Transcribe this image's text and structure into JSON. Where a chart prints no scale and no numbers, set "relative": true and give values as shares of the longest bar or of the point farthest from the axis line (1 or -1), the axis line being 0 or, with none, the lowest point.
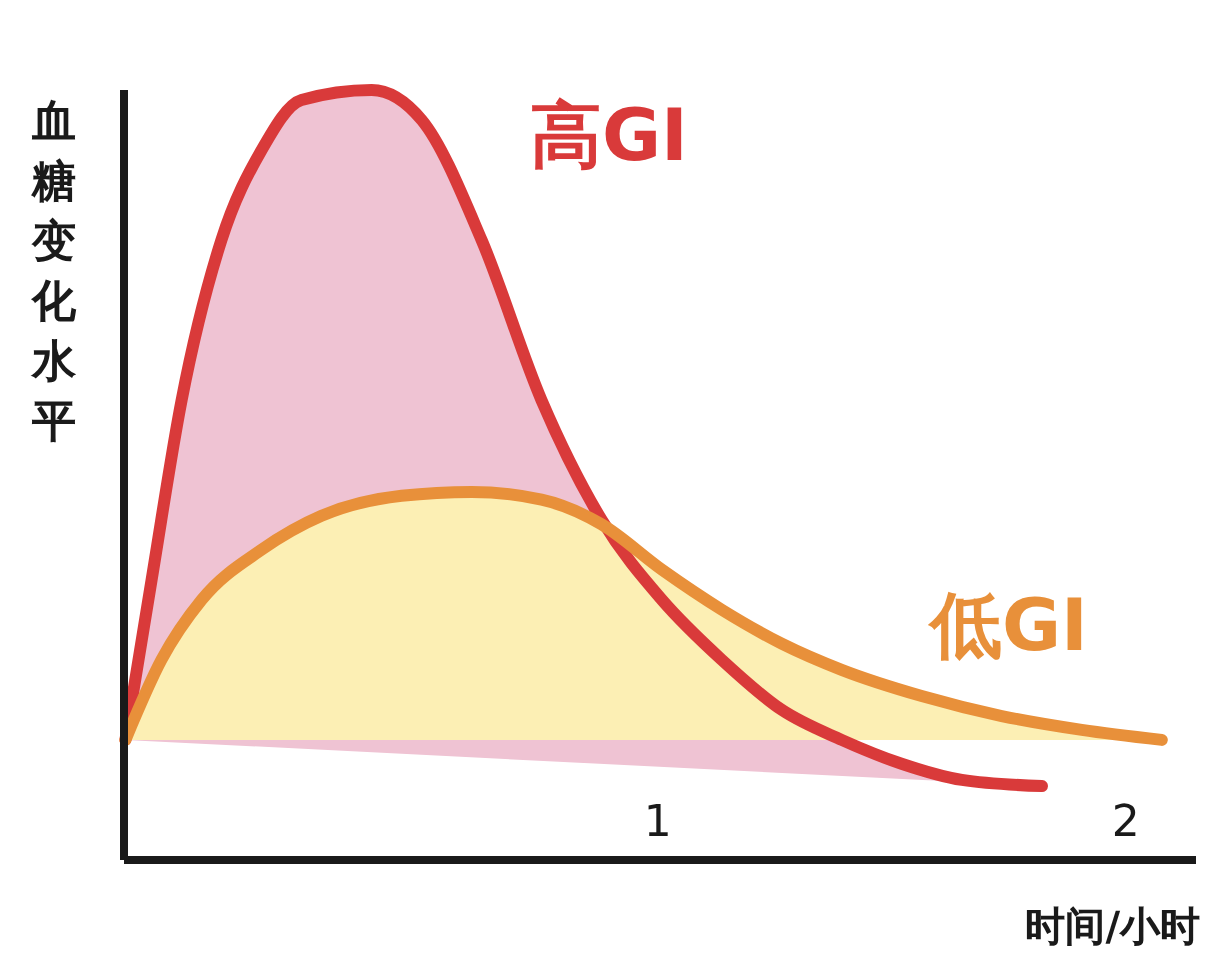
{
  "chart_data": {
    "type": "area",
    "relative": true,
    "xlabel": "时间/小时",
    "ylabel": "血糖变化水平",
    "xlim": [
      -0.14,
      2.15
    ],
    "xticks": [
      1,
      2
    ],
    "series": [
      {
        "name": "高GI",
        "color": "#d93a3a",
        "x": [
          -0.137,
          -0.081,
          -0.017,
          0.068,
          0.154,
          0.239,
          0.389,
          0.496,
          0.624,
          0.752,
          0.88,
          1.009,
          1.137,
          1.265,
          1.393,
          1.521,
          1.65,
          1.821
        ],
        "values": [
          0.156,
          0.364,
          0.597,
          0.805,
          0.922,
          0.987,
          1,
          0.961,
          0.805,
          0.597,
          0.442,
          0.338,
          0.26,
          0.195,
          0.156,
          0.125,
          0.104,
          0.096
        ]
      },
      {
        "name": "低GI",
        "color": "#e8903a",
        "x": [
          -0.137,
          -0.06,
          0.026,
          0.154,
          0.282,
          0.453,
          0.603,
          0.752,
          0.88,
          1.009,
          1.137,
          1.265,
          1.393,
          1.564,
          1.735,
          1.906,
          2.077
        ],
        "values": [
          0.156,
          0.26,
          0.338,
          0.403,
          0.447,
          0.473,
          0.478,
          0.468,
          0.436,
          0.377,
          0.325,
          0.281,
          0.247,
          0.213,
          0.187,
          0.169,
          0.156
        ]
      }
    ]
  }
}
